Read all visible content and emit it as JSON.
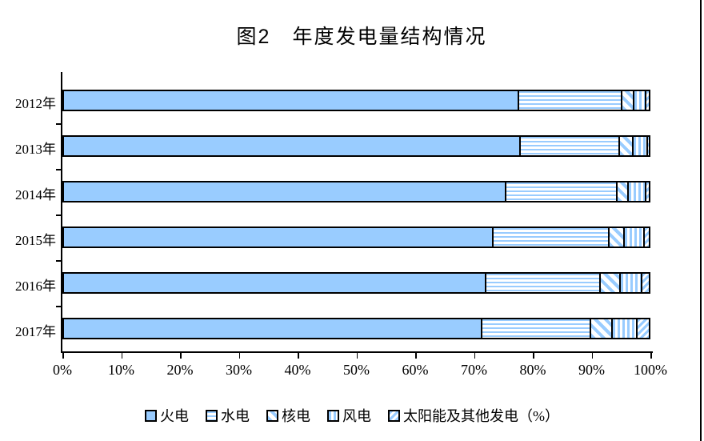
{
  "chart_data": {
    "type": "bar",
    "subtype": "horizontal-stacked-100-percent",
    "title": "图2　年度发电量结构情况",
    "categories": [
      "2012年",
      "2013年",
      "2014年",
      "2015年",
      "2016年",
      "2017年"
    ],
    "series": [
      {
        "name": "火电",
        "pattern": "solid",
        "values": [
          77.8,
          78.1,
          75.7,
          73.4,
          72.2,
          71.5
        ]
      },
      {
        "name": "水电",
        "pattern": "hlines",
        "values": [
          17.7,
          17.0,
          18.9,
          19.9,
          19.6,
          18.7
        ]
      },
      {
        "name": "核电",
        "pattern": "diag-back",
        "values": [
          2.0,
          2.3,
          2.0,
          2.6,
          3.4,
          3.7
        ]
      },
      {
        "name": "风电",
        "pattern": "vlines",
        "values": [
          2.1,
          2.4,
          3.0,
          3.4,
          3.7,
          4.2
        ]
      },
      {
        "name": "太阳能及其他发电",
        "pattern": "diag-fwd",
        "values": [
          0.4,
          0.2,
          0.4,
          0.7,
          1.1,
          1.9
        ]
      }
    ],
    "legend_labels": [
      "火电",
      "水电",
      "核电",
      "风电",
      "太阳能及其他发电（%）"
    ],
    "legend_position": "bottom",
    "x_ticks": [
      "0%",
      "10%",
      "20%",
      "30%",
      "40%",
      "50%",
      "60%",
      "70%",
      "80%",
      "90%",
      "100%"
    ],
    "xlim": [
      0,
      100
    ],
    "unit": "%",
    "grid": "off",
    "bar_fill_color": "#99CCFF",
    "bar_border_color": "#000000",
    "background_color": "#FFFFFF"
  }
}
